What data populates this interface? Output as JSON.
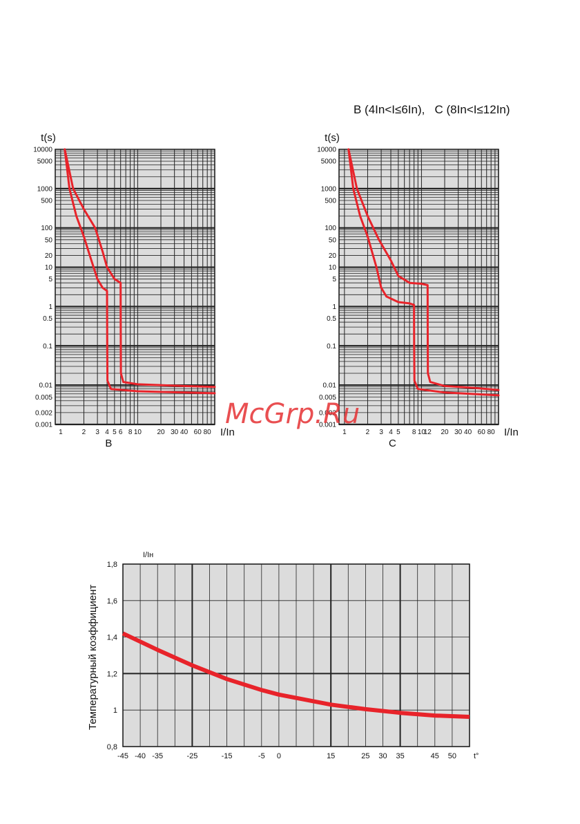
{
  "header": {
    "title": "B (4In<I≤6In),   C (8In<I≤12In)"
  },
  "watermark": {
    "text": "McGrp.Ru"
  },
  "chart_data": [
    {
      "id": "B",
      "type": "line",
      "xlabel": "I/In",
      "ylabel": "t(s)",
      "caption": "B",
      "x_scale": "log",
      "y_scale": "log",
      "xlim": [
        0.85,
        100
      ],
      "ylim": [
        0.001,
        10000
      ],
      "x_ticks": [
        {
          "v": 1,
          "label": "1"
        },
        {
          "v": 2,
          "label": "2"
        },
        {
          "v": 3,
          "label": "3"
        },
        {
          "v": 4,
          "label": "4"
        },
        {
          "v": 5,
          "label": "5"
        },
        {
          "v": 6,
          "label": "6"
        },
        {
          "v": 8,
          "label": "8"
        },
        {
          "v": 10,
          "label": "10"
        },
        {
          "v": 20,
          "label": "20"
        },
        {
          "v": 30,
          "label": "30"
        },
        {
          "v": 40,
          "label": "40"
        },
        {
          "v": 60,
          "label": "60"
        },
        {
          "v": 80,
          "label": "80"
        }
      ],
      "y_ticks": [
        {
          "v": 10000,
          "label": "10000"
        },
        {
          "v": 5000,
          "label": "5000"
        },
        {
          "v": 1000,
          "label": "1000"
        },
        {
          "v": 500,
          "label": "500"
        },
        {
          "v": 100,
          "label": "100"
        },
        {
          "v": 50,
          "label": "50"
        },
        {
          "v": 20,
          "label": "20"
        },
        {
          "v": 10,
          "label": "10"
        },
        {
          "v": 5,
          "label": "5"
        },
        {
          "v": 1,
          "label": "1"
        },
        {
          "v": 0.5,
          "label": "0.5"
        },
        {
          "v": 0.1,
          "label": "0.1"
        },
        {
          "v": 0.01,
          "label": "0.01"
        },
        {
          "v": 0.005,
          "label": "0.005"
        },
        {
          "v": 0.002,
          "label": "0.002"
        },
        {
          "v": 0.001,
          "label": "0.001"
        }
      ],
      "series": [
        {
          "points": [
            [
              1.13,
              10000
            ],
            [
              1.3,
              1000
            ],
            [
              1.6,
              200
            ],
            [
              2,
              60
            ],
            [
              2.5,
              15
            ],
            [
              3,
              5
            ],
            [
              3.5,
              3
            ],
            [
              4,
              2.5
            ],
            [
              4.02,
              0.1
            ],
            [
              4.05,
              0.013
            ],
            [
              4.5,
              0.008
            ],
            [
              10,
              0.007
            ],
            [
              40,
              0.0065
            ],
            [
              100,
              0.0062
            ]
          ]
        },
        {
          "points": [
            [
              1.13,
              10000
            ],
            [
              1.45,
              1000
            ],
            [
              2,
              300
            ],
            [
              2.8,
              100
            ],
            [
              3.5,
              25
            ],
            [
              4,
              10
            ],
            [
              5,
              5
            ],
            [
              6,
              4
            ],
            [
              6.02,
              0.5
            ],
            [
              6.05,
              0.02
            ],
            [
              6.5,
              0.012
            ],
            [
              10,
              0.0105
            ],
            [
              40,
              0.0095
            ],
            [
              100,
              0.009
            ]
          ]
        }
      ]
    },
    {
      "id": "C",
      "type": "line",
      "xlabel": "I/In",
      "ylabel": "t(s)",
      "caption": "C",
      "x_scale": "log",
      "y_scale": "log",
      "xlim": [
        0.85,
        100
      ],
      "ylim": [
        0.001,
        10000
      ],
      "x_ticks": [
        {
          "v": 1,
          "label": "1"
        },
        {
          "v": 2,
          "label": "2"
        },
        {
          "v": 3,
          "label": "3"
        },
        {
          "v": 4,
          "label": "4"
        },
        {
          "v": 5,
          "label": "5"
        },
        {
          "v": 8,
          "label": "8"
        },
        {
          "v": 10,
          "label": "10"
        },
        {
          "v": 12,
          "label": "12"
        },
        {
          "v": 20,
          "label": "20"
        },
        {
          "v": 30,
          "label": "30"
        },
        {
          "v": 40,
          "label": "40"
        },
        {
          "v": 60,
          "label": "60"
        },
        {
          "v": 80,
          "label": "80"
        }
      ],
      "y_ticks": [
        {
          "v": 10000,
          "label": "10000"
        },
        {
          "v": 5000,
          "label": "5000"
        },
        {
          "v": 1000,
          "label": "1000"
        },
        {
          "v": 500,
          "label": "500"
        },
        {
          "v": 100,
          "label": "100"
        },
        {
          "v": 50,
          "label": "50"
        },
        {
          "v": 20,
          "label": "20"
        },
        {
          "v": 10,
          "label": "10"
        },
        {
          "v": 5,
          "label": "5"
        },
        {
          "v": 1,
          "label": "1"
        },
        {
          "v": 0.5,
          "label": "0.5"
        },
        {
          "v": 0.1,
          "label": "0.1"
        },
        {
          "v": 0.01,
          "label": "0.01"
        },
        {
          "v": 0.005,
          "label": "0.005"
        },
        {
          "v": 0.002,
          "label": "0.002"
        },
        {
          "v": 0.001,
          "label": "0.001"
        }
      ],
      "series": [
        {
          "points": [
            [
              1.13,
              10000
            ],
            [
              1.3,
              1000
            ],
            [
              1.6,
              200
            ],
            [
              2,
              60
            ],
            [
              2.6,
              10
            ],
            [
              3,
              3
            ],
            [
              3.5,
              1.8
            ],
            [
              5,
              1.3
            ],
            [
              7,
              1.2
            ],
            [
              8,
              1.1
            ],
            [
              8.03,
              0.1
            ],
            [
              8.1,
              0.013
            ],
            [
              9,
              0.008
            ],
            [
              20,
              0.0065
            ],
            [
              100,
              0.0055
            ]
          ]
        },
        {
          "points": [
            [
              1.13,
              10000
            ],
            [
              1.45,
              1000
            ],
            [
              2,
              200
            ],
            [
              2.8,
              50
            ],
            [
              4,
              15
            ],
            [
              5,
              6
            ],
            [
              7,
              4
            ],
            [
              10,
              3.8
            ],
            [
              12,
              3.5
            ],
            [
              12.05,
              0.1
            ],
            [
              12.1,
              0.02
            ],
            [
              13,
              0.012
            ],
            [
              20,
              0.0095
            ],
            [
              50,
              0.0085
            ],
            [
              100,
              0.0075
            ]
          ]
        }
      ]
    },
    {
      "id": "temperature",
      "type": "line",
      "ylabel": "Температурный коэффициент",
      "y_unit_label": "I/Iн",
      "xlabel": "t°",
      "xlim": [
        -45,
        55
      ],
      "ylim": [
        0.8,
        1.8
      ],
      "x_ticks": [
        {
          "v": -45,
          "label": "-45"
        },
        {
          "v": -40,
          "label": "-40"
        },
        {
          "v": -35,
          "label": "-35"
        },
        {
          "v": -25,
          "label": "-25"
        },
        {
          "v": -15,
          "label": "-15"
        },
        {
          "v": -5,
          "label": "-5"
        },
        {
          "v": 0,
          "label": "0"
        },
        {
          "v": 15,
          "label": "15"
        },
        {
          "v": 25,
          "label": "25"
        },
        {
          "v": 30,
          "label": "30"
        },
        {
          "v": 35,
          "label": "35"
        },
        {
          "v": 45,
          "label": "45"
        },
        {
          "v": 50,
          "label": "50"
        }
      ],
      "y_ticks": [
        {
          "v": 1.8,
          "label": "1,8"
        },
        {
          "v": 1.6,
          "label": "1,6"
        },
        {
          "v": 1.4,
          "label": "1,4"
        },
        {
          "v": 1.2,
          "label": "1,2"
        },
        {
          "v": 1,
          "label": "1"
        },
        {
          "v": 0.8,
          "label": "0,8"
        }
      ],
      "series": [
        {
          "points": [
            [
              -45,
              1.42
            ],
            [
              -35,
              1.33
            ],
            [
              -25,
              1.245
            ],
            [
              -15,
              1.17
            ],
            [
              -5,
              1.11
            ],
            [
              0,
              1.085
            ],
            [
              15,
              1.03
            ],
            [
              25,
              1.005
            ],
            [
              35,
              0.985
            ],
            [
              45,
              0.97
            ],
            [
              55,
              0.963
            ]
          ]
        }
      ]
    }
  ]
}
